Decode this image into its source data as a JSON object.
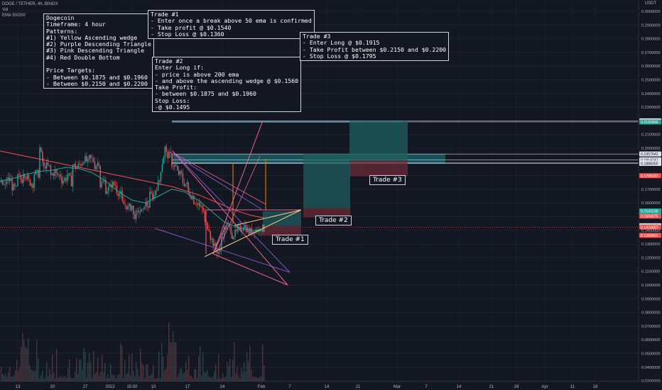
{
  "header": {
    "symbol_line": "DOGE / TETHER, 4h, BINGX",
    "vol_label": "Vol",
    "ema_label": "EMA 50/200"
  },
  "currency": "USDT",
  "notes": {
    "summary": "Dogecoin\nTimeframe: 4 hour\nPatterns:\n#1) Yellow Ascending wedge\n#2) Purple Descending Triangle\n#3) Pink Descending Triangle\n#4) Red Double Bottom\n\nPrice Targets:\n- Between $0.1875 and $0.1960\n- Between $0.2150 and $0.2200",
    "trade1": "Trade #1\n- Enter once a break above 50 ema is confirmed\n- Take profit @ $0.1540\n- Stop Loss @ $0.1360",
    "trade2": "Trade #2\nEnter Long if:\n- price is above 200 ema\n- and above the ascending wedge @ $0.1560\nTake Profit:\n- between $0.1875 and $0.1960\nStop Loss:\n-@ $0.1495",
    "trade3": "Trade #3\n- Enter Long @ $0.1915\n- Take Profit between $0.2150 and $0.2200\n- Stop Loss @ $0.1795"
  },
  "trade_labels": [
    "Trade #1",
    "Trade #2",
    "Trade #3"
  ],
  "chart_data": {
    "type": "candlestick",
    "symbol": "DOGE / TETHER",
    "timeframe": "4h",
    "exchange": "BINGX",
    "y_axis": {
      "scale": "linear",
      "range": [
        0.0292,
        0.3075
      ],
      "ticks": [
        0.3,
        0.29,
        0.28,
        0.27,
        0.26,
        0.25,
        0.24,
        0.23,
        0.22,
        0.21,
        0.2,
        0.19,
        0.18,
        0.17,
        0.16,
        0.15,
        0.14,
        0.13,
        0.12,
        0.11,
        0.1,
        0.09,
        0.08,
        0.07,
        0.06,
        0.05,
        0.04,
        0.03
      ],
      "tick_labels": [
        "0.3000000",
        "0.2900000",
        "0.2800000",
        "0.2700000",
        "0.2600000",
        "0.2500000",
        "0.2400000",
        "0.2300000",
        "0.2200000",
        "0.2100000",
        "0.2000000",
        "0.1900000",
        "0.1800000",
        "0.1700000",
        "0.1600000",
        "0.1500000",
        "0.1400000",
        "0.1300000",
        "0.1200000",
        "0.1100000",
        "0.1000000",
        "0.0900000",
        "0.0800000",
        "0.0700000",
        "0.0600000",
        "0.0500000",
        "0.0400000",
        "0.0300000"
      ]
    },
    "x_axis": {
      "ticks": [
        "13",
        "20",
        "27",
        "2022",
        "15:00",
        "10",
        "17",
        "24",
        "Feb",
        "7",
        "14",
        "21",
        "Mar",
        "7",
        "14",
        "21",
        "28",
        "Apr",
        "11",
        "18"
      ]
    },
    "series": [
      {
        "name": "EMA 50"
      },
      {
        "name": "EMA 200"
      }
    ],
    "price_path": [
      [
        0.175,
        0.172
      ],
      [
        0.178,
        0.176
      ],
      [
        0.172,
        0.17
      ],
      [
        0.18,
        0.177
      ],
      [
        0.185,
        0.178
      ],
      [
        0.176,
        0.174
      ],
      [
        0.182,
        0.181
      ],
      [
        0.205,
        0.185
      ],
      [
        0.188,
        0.186
      ],
      [
        0.179,
        0.183
      ],
      [
        0.181,
        0.18
      ],
      [
        0.176,
        0.178
      ],
      [
        0.183,
        0.175
      ],
      [
        0.188,
        0.186
      ],
      [
        0.186,
        0.19
      ],
      [
        0.194,
        0.189
      ],
      [
        0.193,
        0.191
      ],
      [
        0.186,
        0.19
      ],
      [
        0.172,
        0.176
      ],
      [
        0.169,
        0.171
      ],
      [
        0.174,
        0.173
      ],
      [
        0.17,
        0.166
      ],
      [
        0.16,
        0.158
      ],
      [
        0.155,
        0.158
      ],
      [
        0.15,
        0.152
      ],
      [
        0.155,
        0.153
      ],
      [
        0.16,
        0.158
      ],
      [
        0.166,
        0.165
      ],
      [
        0.168,
        0.176
      ],
      [
        0.18,
        0.2
      ],
      [
        0.196,
        0.194
      ],
      [
        0.19,
        0.186
      ],
      [
        0.183,
        0.18
      ],
      [
        0.176,
        0.173
      ],
      [
        0.168,
        0.165
      ],
      [
        0.162,
        0.16
      ],
      [
        0.158,
        0.154
      ],
      [
        0.146,
        0.142
      ],
      [
        0.138,
        0.128
      ],
      [
        0.126,
        0.124
      ],
      [
        0.133,
        0.142
      ],
      [
        0.145,
        0.14
      ],
      [
        0.136,
        0.138
      ],
      [
        0.14,
        0.142
      ],
      [
        0.146,
        0.14
      ],
      [
        0.138,
        0.14
      ],
      [
        0.141,
        0.14
      ],
      [
        0.142,
        0.141
      ]
    ],
    "ema50": [
      0.176,
      0.178,
      0.181,
      0.183,
      0.184,
      0.186,
      0.185,
      0.182,
      0.176,
      0.168,
      0.162,
      0.16,
      0.165,
      0.17,
      0.168,
      0.162,
      0.154,
      0.146,
      0.142,
      0.14,
      0.14
    ],
    "ema200": [
      0.198,
      0.196,
      0.194,
      0.192,
      0.19,
      0.188,
      0.186,
      0.184,
      0.182,
      0.18,
      0.178,
      0.176,
      0.174,
      0.172,
      0.169,
      0.166,
      0.162,
      0.158,
      0.154,
      0.151,
      0.149
    ],
    "last_price_labels": [
      {
        "value": 0.2200165,
        "text": "0.2200165",
        "color": "#e0e3eb"
      },
      {
        "value": 0.2191846,
        "text": "0.2191846",
        "color": "#26a69a"
      },
      {
        "value": 0.1957642,
        "text": "0.1957642",
        "color": "#e0e3eb"
      },
      {
        "value": 0.1915493,
        "text": "0.1915493",
        "color": "#26a69a"
      },
      {
        "value": 0.1914747,
        "text": "0.1914747",
        "color": "#e0e3eb"
      },
      {
        "value": 0.1892543,
        "text": "0.1892543",
        "color": "#e0e3eb"
      },
      {
        "value": 0.1888355,
        "text": "0.1888355",
        "color": "#e0e3eb"
      },
      {
        "value": 0.1799187,
        "text": "0.1799187",
        "color": "#ef5350"
      },
      {
        "value": 0.1540235,
        "text": "0.1540235",
        "color": "#e0e3eb"
      },
      {
        "value": 0.1541538,
        "text": "0.1541538",
        "color": "#26a69a"
      },
      {
        "value": 0.1504075,
        "text": "0.1504075",
        "color": "#ef5350"
      },
      {
        "value": 0.1433,
        "text": "0.1433000",
        "color": "#e0e3eb"
      },
      {
        "value": 0.1423457,
        "text": "0.1423457",
        "color": "#ef5350"
      },
      {
        "value": 0.1363461,
        "text": "0.1363461",
        "color": "#ef5350"
      }
    ],
    "trades": [
      {
        "name": "Trade #1",
        "entry": 0.1433,
        "take_profit": 0.154,
        "stop_loss": 0.136
      },
      {
        "name": "Trade #2",
        "entry": 0.156,
        "take_profit": [
          0.1875,
          0.196
        ],
        "stop_loss": 0.1495
      },
      {
        "name": "Trade #3",
        "entry": 0.1915,
        "take_profit": [
          0.215,
          0.22
        ],
        "stop_loss": 0.1795
      }
    ],
    "zones": [
      {
        "from": 0.2191846,
        "to": 0.2200165
      },
      {
        "from": 0.1888355,
        "to": 0.1957642
      }
    ],
    "colors": {
      "background": "#131722",
      "up": "#26a69a",
      "down": "#ef5350",
      "ema50": "#26a69a",
      "ema200": "#ef5350",
      "yellow_wedge": "#f5cc87",
      "purple_triangle": "#7e57c2",
      "pink_triangle": "#f06292",
      "target_zone": "#1e6e7a",
      "long_profit": "#1f5f5f",
      "long_loss": "#6b2b36"
    }
  }
}
